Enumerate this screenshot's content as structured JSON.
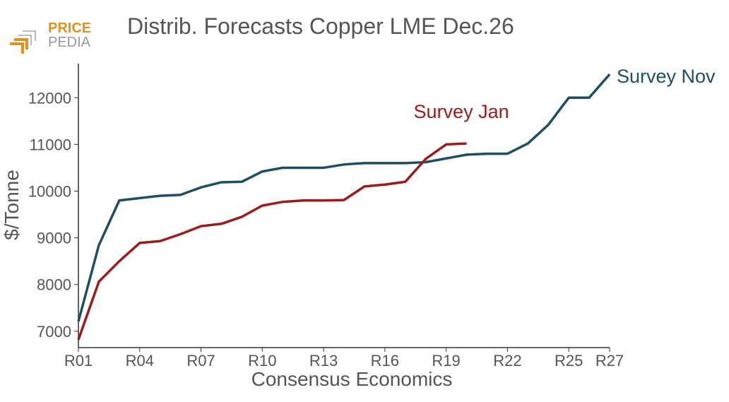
{
  "logo": {
    "line1": "PRICE",
    "line2": "PEDIA"
  },
  "chart_data": {
    "type": "line",
    "title": "Distrib. Forecasts Copper LME Dec.26",
    "x_label": "Consensus Economics",
    "y_label": "$/Tonne",
    "categories": [
      "R01",
      null,
      null,
      "R04",
      null,
      null,
      "R07",
      null,
      null,
      "R10",
      null,
      null,
      "R13",
      null,
      null,
      "R16",
      null,
      null,
      "R19",
      null,
      null,
      "R22",
      null,
      null,
      "R25",
      null,
      "R27"
    ],
    "series": [
      {
        "name": "Survey Nov",
        "color": "#1f4e63",
        "values": [
          7210,
          8840,
          9800,
          9850,
          9900,
          9920,
          10080,
          10190,
          10200,
          10420,
          10500,
          10500,
          10500,
          10570,
          10600,
          10600,
          10600,
          10620,
          10700,
          10780,
          10800,
          10800,
          11020,
          11420,
          12000,
          12000,
          12500
        ]
      },
      {
        "name": "Survey Jan",
        "color": "#9b1c1c",
        "values": [
          6820,
          8060,
          8500,
          8890,
          8930,
          9080,
          9250,
          9300,
          9450,
          9690,
          9770,
          9800,
          9800,
          9810,
          10100,
          10140,
          10200,
          10690,
          11000,
          11020,
          null,
          null,
          null,
          null,
          null,
          null,
          null
        ]
      }
    ],
    "ylim": [
      6650,
      12730
    ],
    "yticks": [
      7000,
      8000,
      9000,
      10000,
      11000,
      12000
    ],
    "grid": false
  }
}
